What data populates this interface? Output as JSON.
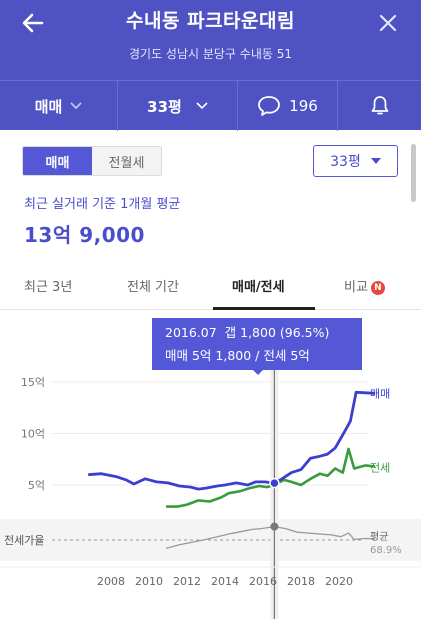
{
  "header": {
    "title": "수내동 파크타운대림",
    "address": "경기도 성남시 분당구 수내동 51",
    "trade_type": "매매",
    "size": "33평",
    "comment_count": "196"
  },
  "toggle": {
    "options": [
      "매매",
      "전월세"
    ],
    "selected": "매매"
  },
  "size_select": {
    "value": "33평"
  },
  "summary": {
    "label": "최근 실거래 기준 1개월 평균",
    "price": "13억 9,000"
  },
  "tabs": [
    "최근 3년",
    "전체 기간",
    "매매/전세",
    "비교"
  ],
  "active_tab": "매매/전세",
  "new_badge": "N",
  "tooltip": {
    "line1": "2016.07  갭 1,800 (96.5%)",
    "line2": "매매 5억 1,800 / 전세 5억"
  },
  "colors": {
    "accent": "#4f52c2",
    "sale": "#3b3fd1",
    "jeonse": "#3a9a3f",
    "ratio": "#999999",
    "badge": "#e8453c"
  },
  "icons": {
    "back": "back-arrow-icon",
    "close": "close-icon",
    "comment": "speech-bubble-icon",
    "bell": "bell-icon",
    "dropdown": "chevron-down-icon"
  },
  "chart_data": {
    "type": "line",
    "x_labels": [
      "2008",
      "2010",
      "2012",
      "2014",
      "2016",
      "2018",
      "2020"
    ],
    "y_labels": [
      "15억",
      "10억",
      "5억"
    ],
    "ylim": [
      0,
      15
    ],
    "series": [
      {
        "name": "매매",
        "unit": "억",
        "points": [
          [
            2006.8,
            6.0
          ],
          [
            2007.5,
            6.1
          ],
          [
            2008.3,
            5.8
          ],
          [
            2008.8,
            5.5
          ],
          [
            2009.2,
            5.1
          ],
          [
            2009.8,
            5.6
          ],
          [
            2010.4,
            5.3
          ],
          [
            2011.0,
            5.2
          ],
          [
            2011.6,
            4.9
          ],
          [
            2012.2,
            4.8
          ],
          [
            2012.6,
            4.6
          ],
          [
            2013.0,
            4.7
          ],
          [
            2013.6,
            4.9
          ],
          [
            2014.0,
            5.0
          ],
          [
            2014.6,
            5.2
          ],
          [
            2015.2,
            5.0
          ],
          [
            2015.6,
            5.3
          ],
          [
            2016.1,
            5.3
          ],
          [
            2016.6,
            5.18
          ],
          [
            2017.0,
            5.6
          ],
          [
            2017.5,
            6.2
          ],
          [
            2018.0,
            6.5
          ],
          [
            2018.5,
            7.6
          ],
          [
            2019.0,
            7.8
          ],
          [
            2019.4,
            8.0
          ],
          [
            2019.8,
            8.6
          ],
          [
            2020.3,
            10.2
          ],
          [
            2020.6,
            11.2
          ],
          [
            2020.9,
            14.0
          ],
          [
            2021.9,
            13.9
          ]
        ]
      },
      {
        "name": "전세",
        "unit": "억",
        "points": [
          [
            2010.9,
            2.9
          ],
          [
            2011.5,
            2.9
          ],
          [
            2012.0,
            3.1
          ],
          [
            2012.6,
            3.5
          ],
          [
            2013.2,
            3.4
          ],
          [
            2013.8,
            3.8
          ],
          [
            2014.2,
            4.2
          ],
          [
            2014.8,
            4.4
          ],
          [
            2015.3,
            4.7
          ],
          [
            2015.8,
            4.9
          ],
          [
            2016.2,
            4.8
          ],
          [
            2016.6,
            5.0
          ],
          [
            2017.1,
            5.5
          ],
          [
            2017.5,
            5.3
          ],
          [
            2018.0,
            5.0
          ],
          [
            2018.5,
            5.6
          ],
          [
            2019.0,
            6.1
          ],
          [
            2019.4,
            5.9
          ],
          [
            2019.8,
            6.6
          ],
          [
            2020.2,
            6.2
          ],
          [
            2020.5,
            8.5
          ],
          [
            2020.8,
            6.6
          ],
          [
            2021.4,
            6.9
          ],
          [
            2021.9,
            6.8
          ]
        ]
      },
      {
        "name": "전세가율",
        "unit": "%",
        "points": [
          [
            2010.9,
            48
          ],
          [
            2011.6,
            56
          ],
          [
            2012.3,
            62
          ],
          [
            2013.0,
            68
          ],
          [
            2013.6,
            74
          ],
          [
            2014.2,
            80
          ],
          [
            2014.8,
            85
          ],
          [
            2015.4,
            90
          ],
          [
            2015.9,
            92
          ],
          [
            2016.6,
            96.5
          ],
          [
            2017.2,
            92
          ],
          [
            2017.8,
            84
          ],
          [
            2018.4,
            82
          ],
          [
            2019.0,
            80
          ],
          [
            2019.6,
            78
          ],
          [
            2020.1,
            74
          ],
          [
            2020.5,
            82
          ],
          [
            2020.8,
            68
          ],
          [
            2021.4,
            70
          ],
          [
            2021.9,
            68.9
          ]
        ]
      }
    ],
    "legend": [
      "매매",
      "전세"
    ],
    "ratio_label": "전세가율",
    "avg_label": "평균",
    "ratio_last": "68.9%",
    "selected_x": 2016.6
  }
}
